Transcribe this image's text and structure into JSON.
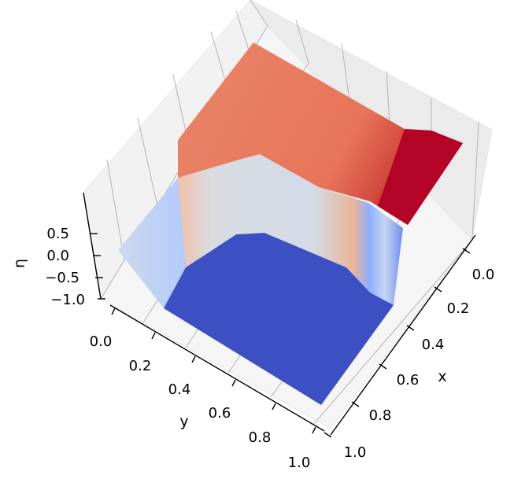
{
  "chart_data": {
    "type": "surface",
    "colormap": "coolwarm",
    "xlabel": "x",
    "ylabel": "y",
    "zlabel": "η",
    "x_ticks": [
      "0.0",
      "0.2",
      "0.4",
      "0.6",
      "0.8",
      "1.0"
    ],
    "y_ticks": [
      "0.0",
      "0.2",
      "0.4",
      "0.6",
      "0.8",
      "1.0"
    ],
    "z_ticks": [
      "−1.0",
      "−0.5",
      "0.0",
      "0.5"
    ],
    "xlim": [
      0,
      1
    ],
    "ylim": [
      0,
      1
    ],
    "zlim": [
      -1.05,
      0.85
    ],
    "grid": true,
    "regions": [
      {
        "name": "upper plateau",
        "x_range": [
          0.0,
          0.5
        ],
        "y_range": [
          0.35,
          1.0
        ],
        "z": 0.6
      },
      {
        "name": "red ridge",
        "x_range": [
          0.5,
          0.62
        ],
        "y_range": [
          0.55,
          1.0
        ],
        "z": 0.85
      },
      {
        "name": "middle plateau",
        "x_range": [
          0.0,
          0.45
        ],
        "y_range": [
          0.0,
          0.35
        ],
        "z": -0.05
      },
      {
        "name": "lower plateau",
        "x_range": [
          0.45,
          1.0
        ],
        "y_range": [
          0.0,
          1.0
        ],
        "z": -1.0
      }
    ]
  }
}
